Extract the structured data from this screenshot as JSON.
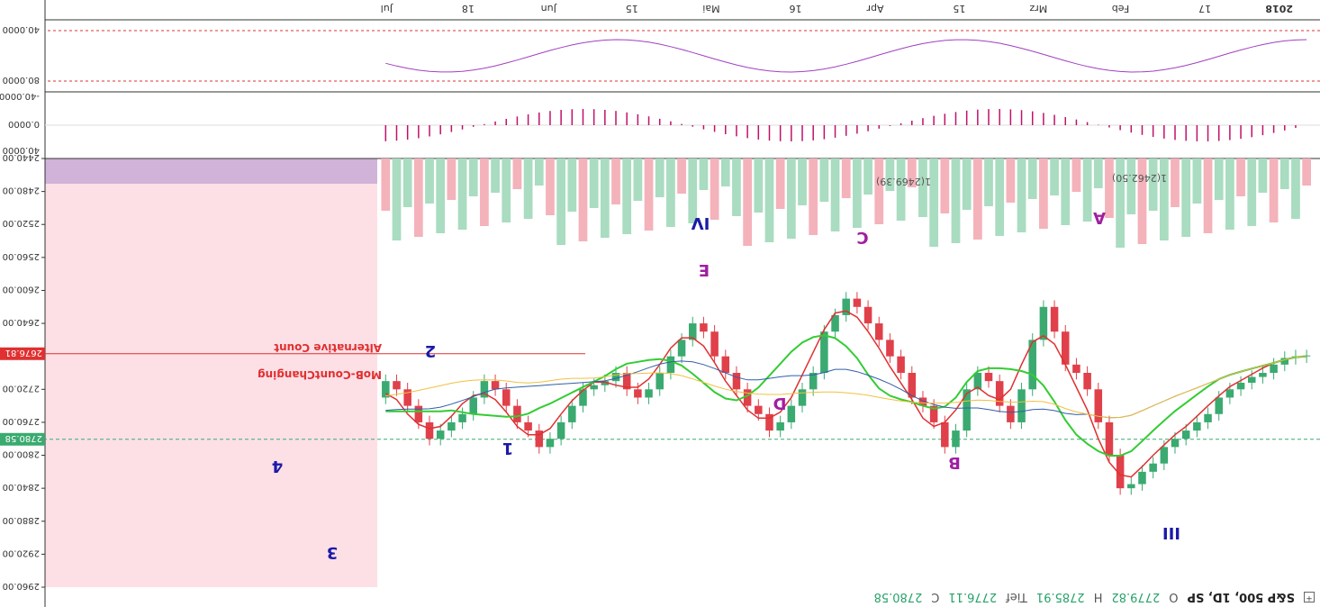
{
  "header": {
    "symbol": "S&P 500, 1D, SP",
    "open_label": "O",
    "open": "2779.82",
    "high_label": "H",
    "high": "2785.91",
    "low_label": "Tief",
    "low": "2776.11",
    "close_label": "C",
    "close": "2780.58"
  },
  "time_axis": {
    "labels": [
      "2018",
      "17",
      "Feb",
      "Mrz",
      "15",
      "Apr",
      "16",
      "Mai",
      "15",
      "Jun",
      "18",
      "Jul"
    ]
  },
  "price_axis": {
    "ticks": [
      "2960.00",
      "2920.00",
      "2880.00",
      "2840.00",
      "2800.00",
      "2760.00",
      "2720.00",
      "2680.00",
      "2640.00",
      "2600.00",
      "2560.00",
      "2520.00",
      "2480.00",
      "2440.00"
    ],
    "current_price": "2780.58",
    "marker_price": "2676.81"
  },
  "oscillator_axis": {
    "ticks": [
      "40.0000",
      "0.0000",
      "-40.0000"
    ]
  },
  "rsi_axis": {
    "ticks": [
      "80.0000",
      "40.0000"
    ]
  },
  "annotations": {
    "wave_labels": [
      "1",
      "2",
      "3",
      "4",
      "III",
      "IV",
      "A",
      "B",
      "C",
      "D",
      "E"
    ],
    "text_mob": "MoB-CountChanging",
    "text_alt": "Alternative Count",
    "level_1": "1(2462.50)",
    "level_2": "1(2469.39)"
  },
  "colors": {
    "up_candle": "#3aaa70",
    "down_candle": "#e0404a",
    "volume_up": "#a9dcc0",
    "volume_down": "#f4b2ba",
    "ma_blue": "#2f5fa8",
    "ma_green": "#33cc33",
    "ma_red": "#e03030",
    "ma_orange": "#f0c040",
    "wave_blue": "#1a1aa8",
    "wave_magenta": "#a020a0",
    "rsi_line": "#a040c0",
    "macd_hist": "#c0106a",
    "projection_zone": "#fcdde3"
  },
  "chart_data": {
    "type": "candlestick",
    "title": "S&P 500, 1D, SP",
    "price_range": [
      2440,
      2960
    ],
    "reading_note_removed": true,
    "candles_close_approx": [
      2680,
      2682,
      2690,
      2700,
      2705,
      2712,
      2720,
      2730,
      2750,
      2760,
      2770,
      2780,
      2790,
      2810,
      2820,
      2835,
      2840,
      2800,
      2760,
      2720,
      2700,
      2690,
      2650,
      2620,
      2660,
      2720,
      2760,
      2740,
      2710,
      2700,
      2720,
      2770,
      2790,
      2760,
      2740,
      2730,
      2700,
      2680,
      2660,
      2640,
      2620,
      2610,
      2630,
      2650,
      2700,
      2720,
      2740,
      2760,
      2770,
      2750,
      2740,
      2720,
      2700,
      2680,
      2650,
      2640,
      2660,
      2680,
      2700,
      2720,
      2730,
      2720,
      2700,
      2710,
      2715,
      2720,
      2740,
      2760,
      2780,
      2790,
      2770,
      2760,
      2740,
      2720,
      2710,
      2730,
      2750,
      2760,
      2770,
      2780,
      2760,
      2740,
      2720,
      2710,
      2730
    ]
  }
}
